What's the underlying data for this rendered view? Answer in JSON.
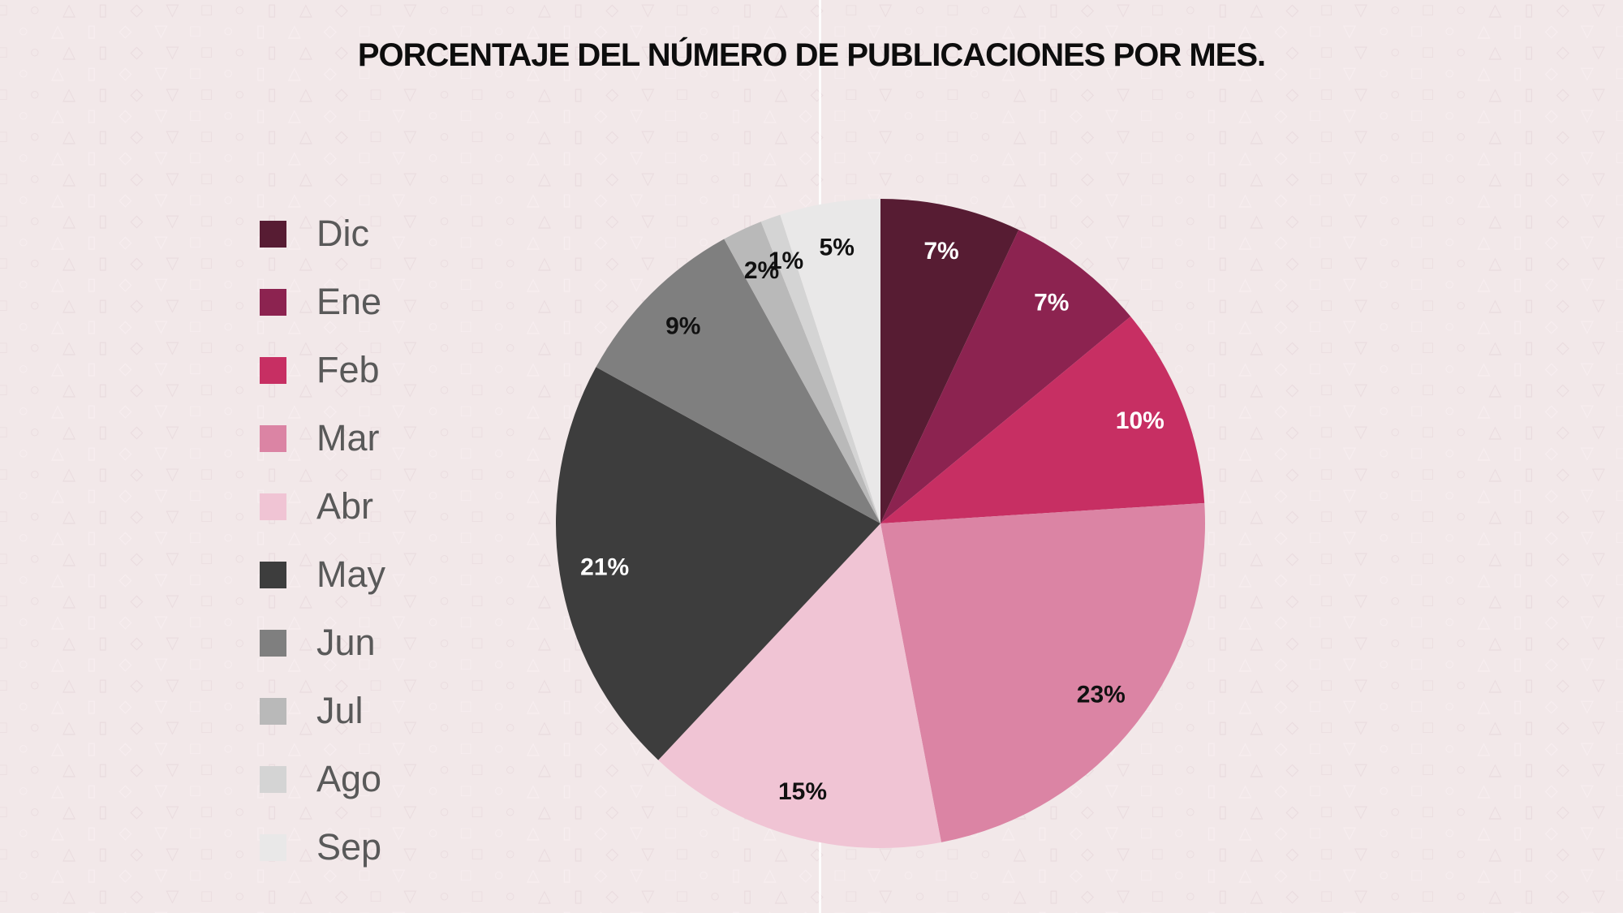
{
  "slide": {
    "background_color": "#f2e8e9",
    "divider_line_color": "#ffffff"
  },
  "chart_data": {
    "type": "pie",
    "title": "PORCENTAJE DEL NÚMERO DE PUBLICACIONES POR MES.",
    "legend_position": "left",
    "legend_text_color": "#595959",
    "start_angle_deg": 0,
    "direction": "clockwise",
    "categories": [
      "Dic",
      "Ene",
      "Feb",
      "Mar",
      "Abr",
      "May",
      "Jun",
      "Jul",
      "Ago",
      "Sep"
    ],
    "values": [
      7,
      7,
      10,
      23,
      15,
      21,
      9,
      2,
      1,
      5
    ],
    "data_labels": [
      "7%",
      "7%",
      "10%",
      "23%",
      "15%",
      "21%",
      "9%",
      "2%",
      "1%",
      "5%"
    ],
    "slice_colors": [
      "#571c33",
      "#8c2350",
      "#c72f63",
      "#db84a4",
      "#f0c4d4",
      "#3d3d3d",
      "#7f7f7f",
      "#b9b9b9",
      "#d4d4d4",
      "#e9e8e8"
    ],
    "data_label_colors": [
      "#ffffff",
      "#ffffff",
      "#ffffff",
      "#111111",
      "#111111",
      "#ffffff",
      "#111111",
      "#111111",
      "#111111",
      "#111111"
    ]
  }
}
